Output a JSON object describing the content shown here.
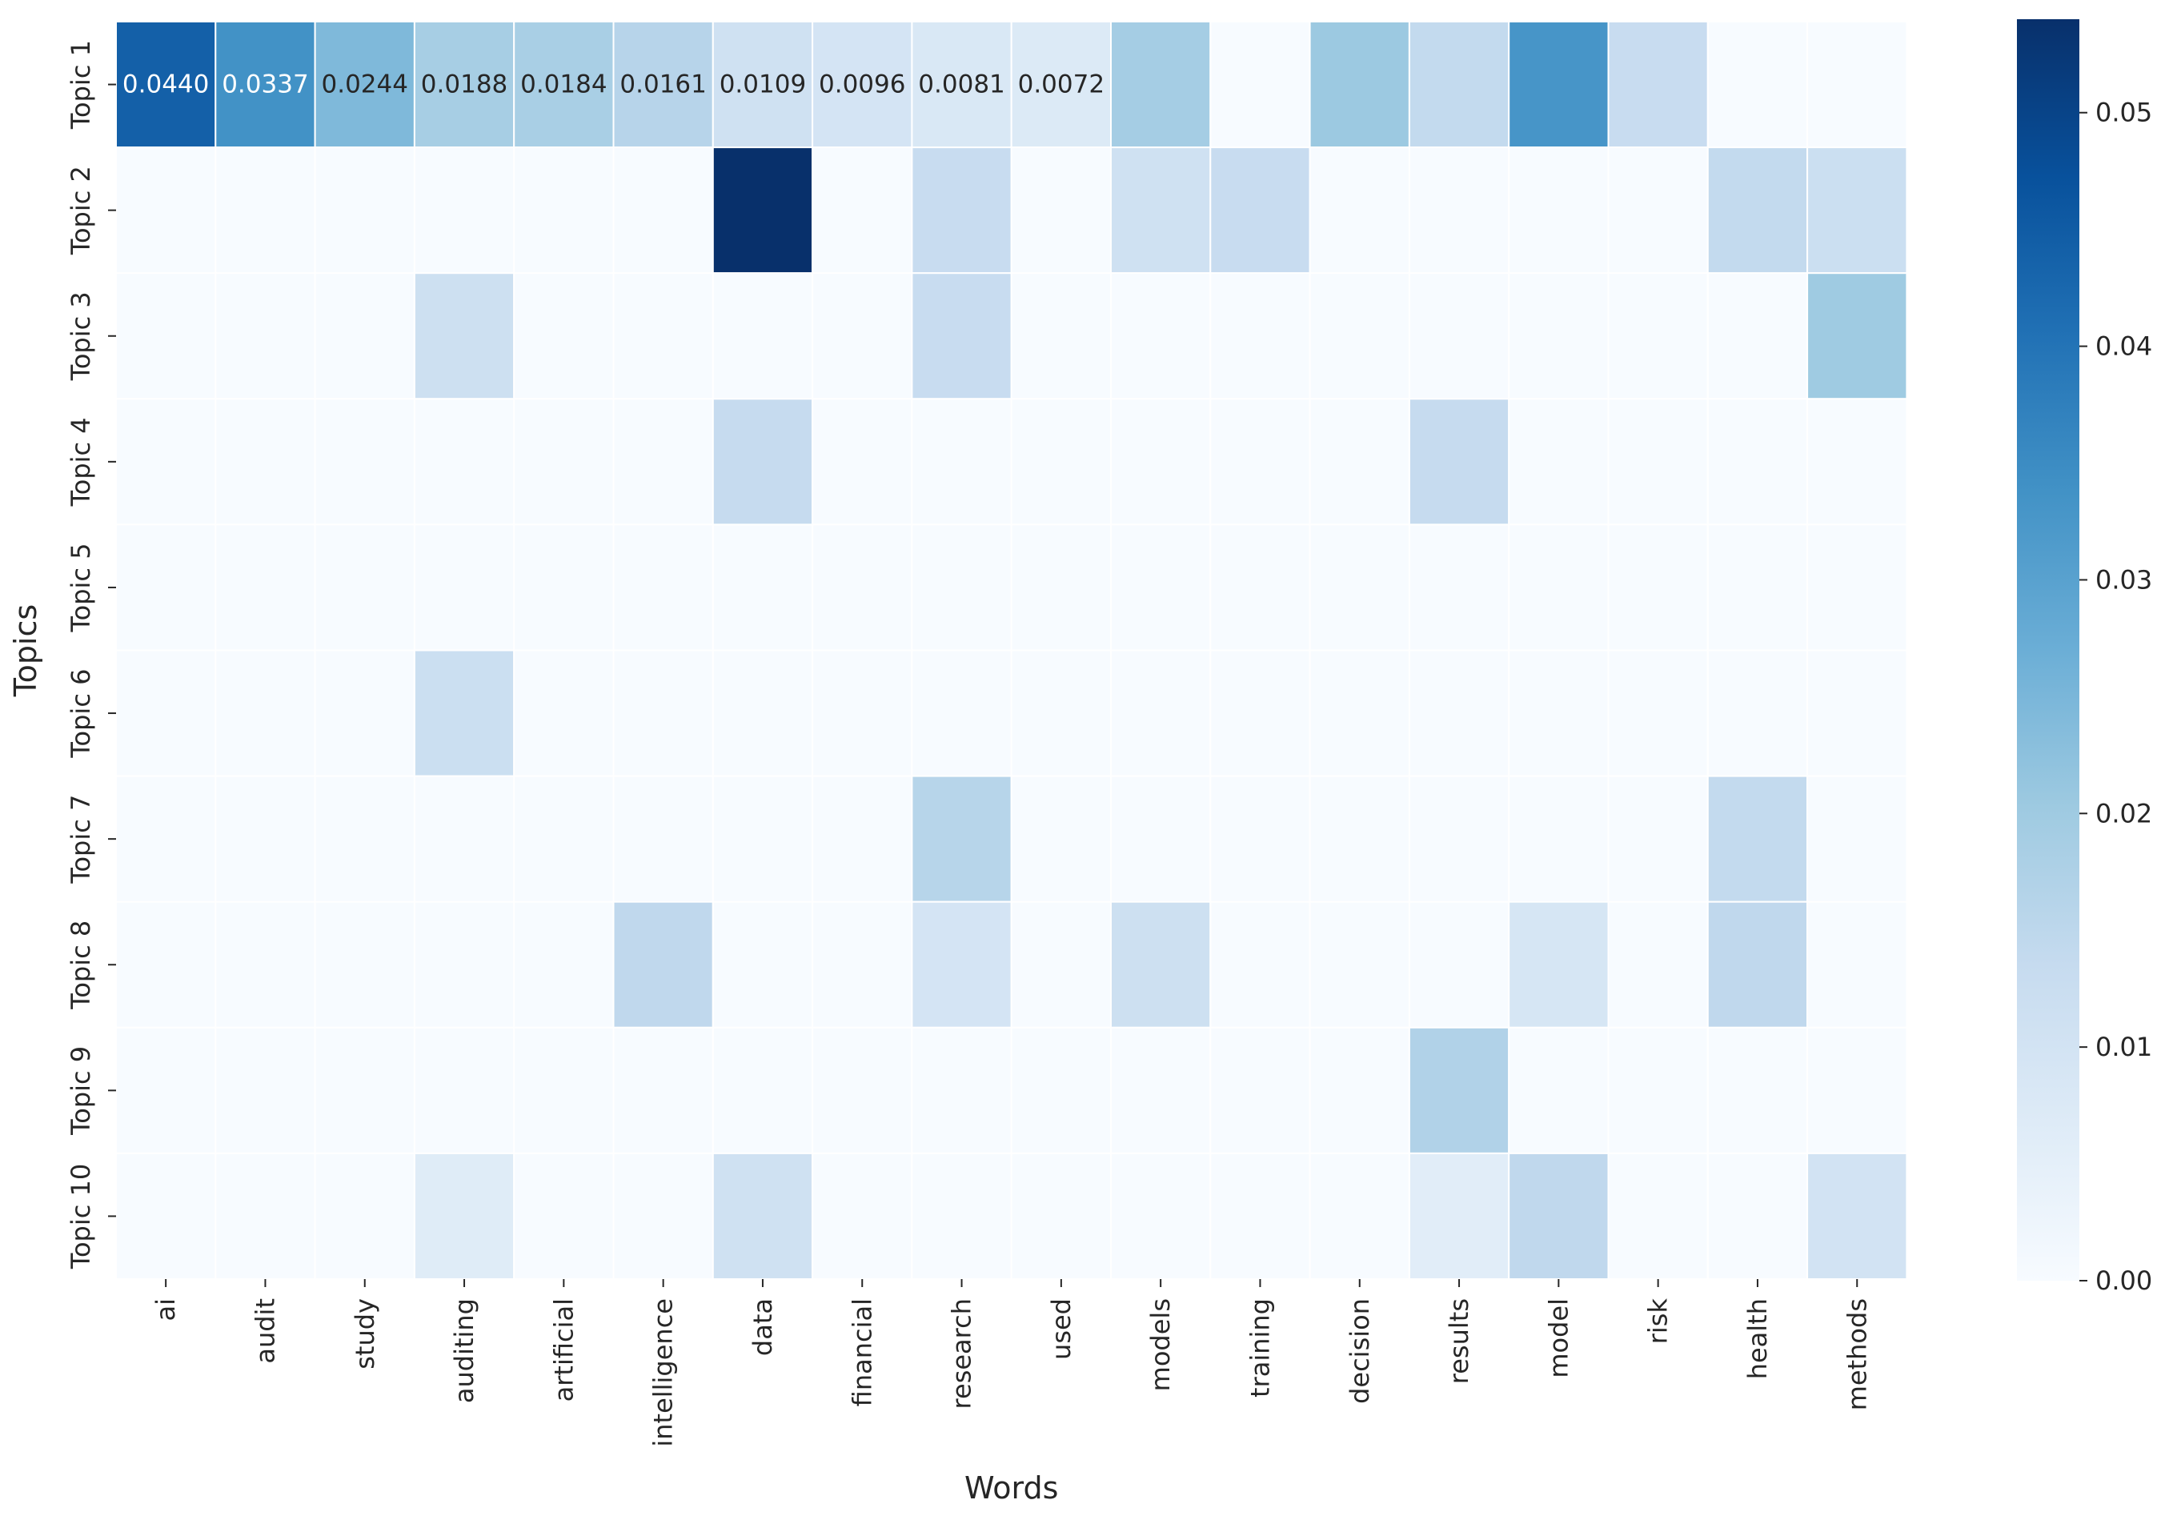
{
  "chart_data": {
    "type": "heatmap",
    "title": "",
    "xlabel": "Words",
    "ylabel": "Topics",
    "columns": [
      "ai",
      "audit",
      "study",
      "auditing",
      "artificial",
      "intelligence",
      "data",
      "financial",
      "research",
      "used",
      "models",
      "training",
      "decision",
      "results",
      "model",
      "risk",
      "health",
      "methods"
    ],
    "rows": [
      "Topic 1",
      "Topic 2",
      "Topic 3",
      "Topic 4",
      "Topic 5",
      "Topic 6",
      "Topic 7",
      "Topic 8",
      "Topic 9",
      "Topic 10"
    ],
    "values": [
      [
        0.044,
        0.0337,
        0.0244,
        0.0188,
        0.0184,
        0.0161,
        0.0109,
        0.0096,
        0.0081,
        0.0072,
        0.019,
        0.0,
        0.0205,
        0.014,
        0.033,
        0.013,
        0.0,
        0.0
      ],
      [
        0.0,
        0.0,
        0.0,
        0.0,
        0.0,
        0.0,
        0.054,
        0.0,
        0.013,
        0.0,
        0.011,
        0.013,
        0.0,
        0.0,
        0.0,
        0.0,
        0.014,
        0.012
      ],
      [
        0.0,
        0.0,
        0.0,
        0.0115,
        0.0,
        0.0,
        0.0,
        0.0,
        0.013,
        0.0,
        0.0,
        0.0,
        0.0,
        0.0,
        0.0,
        0.0,
        0.0,
        0.02
      ],
      [
        0.0,
        0.0,
        0.0,
        0.0,
        0.0,
        0.0,
        0.0135,
        0.0,
        0.0,
        0.0,
        0.0,
        0.0,
        0.0,
        0.0135,
        0.0,
        0.0,
        0.0,
        0.0
      ],
      [
        0.0,
        0.0,
        0.0,
        0.0,
        0.0,
        0.0,
        0.0,
        0.0,
        0.0,
        0.0,
        0.0,
        0.0,
        0.0,
        0.0,
        0.0,
        0.0,
        0.0,
        0.0
      ],
      [
        0.0,
        0.0,
        0.0,
        0.012,
        0.0,
        0.0,
        0.0,
        0.0,
        0.0,
        0.0,
        0.0,
        0.0,
        0.0,
        0.0,
        0.0,
        0.0,
        0.0,
        0.0
      ],
      [
        0.0,
        0.0,
        0.0,
        0.0,
        0.0,
        0.0,
        0.0,
        0.0,
        0.016,
        0.0,
        0.0,
        0.0,
        0.0,
        0.0,
        0.0,
        0.0,
        0.014,
        0.0
      ],
      [
        0.0,
        0.0,
        0.0,
        0.0,
        0.0,
        0.0145,
        0.0,
        0.0,
        0.0095,
        0.0,
        0.0115,
        0.0,
        0.0,
        0.0,
        0.009,
        0.0,
        0.0145,
        0.0
      ],
      [
        0.0,
        0.0,
        0.0,
        0.0,
        0.0,
        0.0,
        0.0,
        0.0,
        0.0,
        0.0,
        0.0,
        0.0,
        0.0,
        0.017,
        0.0,
        0.0,
        0.0,
        0.0
      ],
      [
        0.0,
        0.0,
        0.0,
        0.0065,
        0.0,
        0.0,
        0.011,
        0.0,
        0.0,
        0.0,
        0.0,
        0.0,
        0.0,
        0.006,
        0.0145,
        0.0,
        0.0,
        0.01
      ]
    ],
    "annotations": [
      {
        "row": 0,
        "col": 0,
        "text": "0.0440"
      },
      {
        "row": 0,
        "col": 1,
        "text": "0.0337"
      },
      {
        "row": 0,
        "col": 2,
        "text": "0.0244"
      },
      {
        "row": 0,
        "col": 3,
        "text": "0.0188"
      },
      {
        "row": 0,
        "col": 4,
        "text": "0.0184"
      },
      {
        "row": 0,
        "col": 5,
        "text": "0.0161"
      },
      {
        "row": 0,
        "col": 6,
        "text": "0.0109"
      },
      {
        "row": 0,
        "col": 7,
        "text": "0.0096"
      },
      {
        "row": 0,
        "col": 8,
        "text": "0.0081"
      },
      {
        "row": 0,
        "col": 9,
        "text": "0.0072"
      }
    ],
    "colorbar": {
      "colormap": "Blues",
      "range": [
        0,
        0.054
      ],
      "ticks": [
        0.0,
        0.01,
        0.02,
        0.03,
        0.04,
        0.05
      ],
      "tick_labels": [
        "0.00",
        "0.01",
        "0.02",
        "0.03",
        "0.04",
        "0.05"
      ]
    },
    "colormap_stops": [
      "#f7fbff",
      "#deebf7",
      "#c6dbef",
      "#9ecae1",
      "#6baed6",
      "#4292c6",
      "#2171b5",
      "#08519c",
      "#08306b"
    ]
  }
}
